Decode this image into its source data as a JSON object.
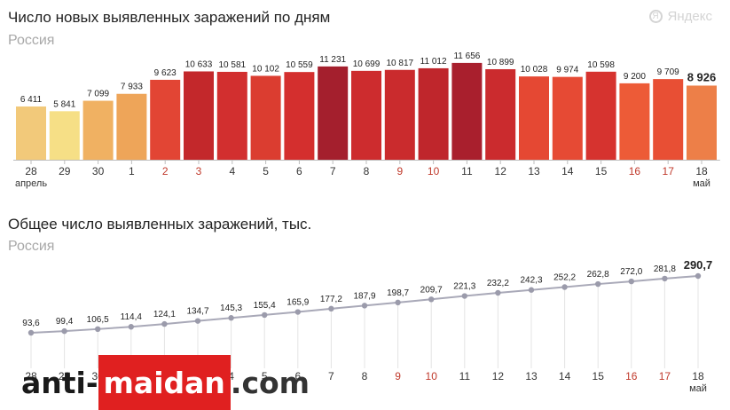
{
  "brand": {
    "name": "Яндекс",
    "icon": "yandex-logo-icon"
  },
  "top_chart": {
    "title": "Число новых выявленных заражений по дням",
    "subtitle": "Россия"
  },
  "bottom_chart": {
    "title": "Общее число выявленных заражений, тыс.",
    "subtitle": "Россия"
  },
  "watermark": {
    "part1": "anti-",
    "part2": "maidan",
    "part3": ".com"
  },
  "chart_data": [
    {
      "type": "bar",
      "title": "Число новых выявленных заражений по дням",
      "subtitle": "Россия",
      "categories": [
        "28",
        "29",
        "30",
        "1",
        "2",
        "3",
        "4",
        "5",
        "6",
        "7",
        "8",
        "9",
        "10",
        "11",
        "12",
        "13",
        "14",
        "15",
        "16",
        "17",
        "18"
      ],
      "month_labels": [
        {
          "index": 0,
          "text": "апрель"
        },
        {
          "index": 20,
          "text": "май"
        }
      ],
      "values": [
        6411,
        5841,
        7099,
        7933,
        9623,
        10633,
        10581,
        10102,
        10559,
        11231,
        10699,
        10817,
        11012,
        11656,
        10899,
        10028,
        9974,
        10598,
        9200,
        9709,
        8926
      ],
      "value_labels": [
        "6 411",
        "5 841",
        "7 099",
        "7 933",
        "9 623",
        "10 633",
        "10 581",
        "10 102",
        "10 559",
        "11 231",
        "10 699",
        "10 817",
        "11 012",
        "11 656",
        "10 899",
        "10 028",
        "9 974",
        "10 598",
        "9 200",
        "9 709",
        "8 926"
      ],
      "colors": [
        "#f2c97a",
        "#f6df86",
        "#f0b162",
        "#eea559",
        "#e24534",
        "#c3282b",
        "#d22f2f",
        "#db3d30",
        "#d42f2e",
        "#a41f2d",
        "#cd2c2e",
        "#ca2b2d",
        "#bf262c",
        "#a91f2d",
        "#cb2b2e",
        "#e54833",
        "#e64a34",
        "#d6332f",
        "#ed5b37",
        "#e84f34",
        "#ed7f48"
      ],
      "red_labels": [
        "2",
        "3",
        "9",
        "10",
        "16",
        "17"
      ],
      "highlight_index": 20,
      "ylim": [
        0,
        12500
      ]
    },
    {
      "type": "line",
      "title": "Общее число выявленных заражений, тыс.",
      "subtitle": "Россия",
      "categories": [
        "28",
        "29",
        "30",
        "1",
        "2",
        "3",
        "4",
        "5",
        "6",
        "7",
        "8",
        "9",
        "10",
        "11",
        "12",
        "13",
        "14",
        "15",
        "16",
        "17",
        "18"
      ],
      "month_labels": [
        {
          "index": 20,
          "text": "май"
        }
      ],
      "values": [
        93.6,
        99.4,
        106.5,
        114.4,
        124.1,
        134.7,
        145.3,
        155.4,
        165.9,
        177.2,
        187.9,
        198.7,
        209.7,
        221.3,
        232.2,
        242.3,
        252.2,
        262.8,
        272.0,
        281.8,
        290.7
      ],
      "value_labels": [
        "93,6",
        "99,4",
        "106,5",
        "114,4",
        "124,1",
        "134,7",
        "145,3",
        "155,4",
        "165,9",
        "177,2",
        "187,9",
        "198,7",
        "209,7",
        "221,3",
        "232,2",
        "242,3",
        "252,2",
        "262,8",
        "272,0",
        "281,8",
        "290,7"
      ],
      "red_labels": [
        "9",
        "10",
        "16",
        "17"
      ],
      "highlight_index": 20,
      "line_color": "#a9a9b8"
    }
  ]
}
